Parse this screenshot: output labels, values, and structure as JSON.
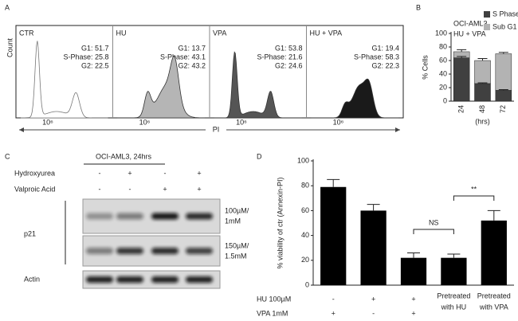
{
  "flow_panel": {
    "panel_label": "A",
    "ylabel": "Count",
    "xlabel": "PI",
    "panels": [
      {
        "name": "CTR",
        "stats": [
          "G1: 51.7",
          "S-Phase: 25.8",
          "G2: 22.5"
        ],
        "tick": "10⁶",
        "fill": "#ffffff"
      },
      {
        "name": "HU",
        "stats": [
          "G1: 13.7",
          "S-Phase: 43.1",
          "G2: 43.2"
        ],
        "tick": "10⁶",
        "fill": "#b5b5b5"
      },
      {
        "name": "VPA",
        "stats": [
          "G1: 53.8",
          "S-Phase: 21.6",
          "G2: 24.6"
        ],
        "tick": "10⁶",
        "fill": "#555555"
      },
      {
        "name": "HU + VPA",
        "stats": [
          "G1: 19.4",
          "S-Phase: 58.3",
          "G2: 22.3"
        ],
        "tick": "10⁶",
        "fill": "#1a1a1a"
      }
    ]
  },
  "blot_panel": {
    "panel_label": "C",
    "title": "OCI-AML3, 24hrs",
    "treatments": [
      {
        "label": "Hydroxyurea",
        "cells": [
          "-",
          "+",
          "-",
          "+"
        ]
      },
      {
        "label": "Valproic Acid",
        "cells": [
          "-",
          "-",
          "+",
          "+"
        ]
      }
    ],
    "p21_label": "p21",
    "p21_doses": [
      [
        "100µM/",
        "1mM"
      ],
      [
        "150µM/",
        "1.5mM"
      ]
    ],
    "loading_label": "Actin"
  },
  "chart_data": [
    {
      "type": "stacked_bar",
      "panel_label": "B",
      "annotations": [
        "OCI-AML3",
        "HU + VPA"
      ],
      "ylabel": "% Cells",
      "xlabel": "(hrs)",
      "categories": [
        "24",
        "48",
        "72"
      ],
      "series": [
        {
          "name": "S Phase",
          "color": "#404040",
          "values": [
            64,
            26,
            16
          ],
          "errors": [
            2,
            1,
            1
          ]
        },
        {
          "name": "Sub G1",
          "color": "#b3b3b3",
          "values": [
            9,
            34,
            54
          ],
          "errors": [
            3,
            3,
            2
          ]
        }
      ],
      "ylim": [
        0,
        100
      ],
      "yticks": [
        0,
        20,
        40,
        60,
        80,
        100
      ]
    },
    {
      "type": "bar",
      "panel_label": "D",
      "ylabel": "% viability of ctr (Annexin-PI)",
      "categories": [
        null,
        null,
        null,
        [
          "Pretreated",
          "with HU"
        ],
        [
          "Pretreated",
          "with VPA"
        ]
      ],
      "condition_rows": [
        {
          "label": "HU 100µM",
          "cells": [
            "-",
            "+",
            "+"
          ]
        },
        {
          "label": "VPA 1mM",
          "cells": [
            "+",
            "-",
            "+"
          ]
        }
      ],
      "values": [
        79,
        60,
        22,
        22,
        52
      ],
      "errors": [
        6,
        5,
        4,
        3,
        8
      ],
      "color": "#000000",
      "significance": [
        "NS",
        "**"
      ],
      "ylim": [
        0,
        100
      ],
      "yticks": [
        0,
        20,
        40,
        60,
        80,
        100
      ]
    }
  ]
}
